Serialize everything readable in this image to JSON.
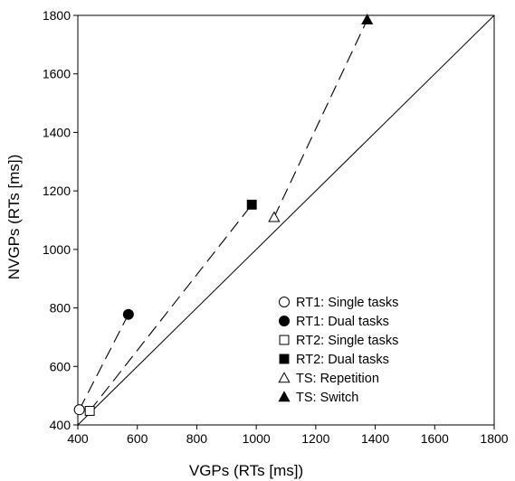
{
  "chart_data": {
    "type": "scatter",
    "xlabel": "VGPs (RTs [ms])",
    "ylabel": "NVGPs (RTs [ms])",
    "xlim": [
      400,
      1800
    ],
    "ylim": [
      400,
      1800
    ],
    "xticks": [
      "400",
      "600",
      "800",
      "1000",
      "1200",
      "1400",
      "1600",
      "1800"
    ],
    "yticks": [
      "400",
      "600",
      "800",
      "1000",
      "1200",
      "1400",
      "1600",
      "1800"
    ],
    "grid": false,
    "legend_position": "bottom-right",
    "reference_line": {
      "from": [
        400,
        400
      ],
      "to": [
        1800,
        1800
      ]
    },
    "series": [
      {
        "name": "RT1: Single tasks",
        "marker": "circle-open",
        "x": 405,
        "y": 452
      },
      {
        "name": "RT1: Dual tasks",
        "marker": "circle-filled",
        "x": 570,
        "y": 778
      },
      {
        "name": "RT2: Single tasks",
        "marker": "square-open",
        "x": 440,
        "y": 448
      },
      {
        "name": "RT2: Dual tasks",
        "marker": "square-filled",
        "x": 985,
        "y": 1153
      },
      {
        "name": "TS: Repetition",
        "marker": "triangle-open",
        "x": 1060,
        "y": 1110
      },
      {
        "name": "TS: Switch",
        "marker": "triangle-filled",
        "x": 1373,
        "y": 1785
      }
    ],
    "connectors": [
      {
        "from": [
          405,
          452
        ],
        "to": [
          570,
          778
        ]
      },
      {
        "from": [
          440,
          448
        ],
        "to": [
          985,
          1153
        ]
      },
      {
        "from": [
          1060,
          1110
        ],
        "to": [
          1373,
          1785
        ]
      }
    ]
  }
}
